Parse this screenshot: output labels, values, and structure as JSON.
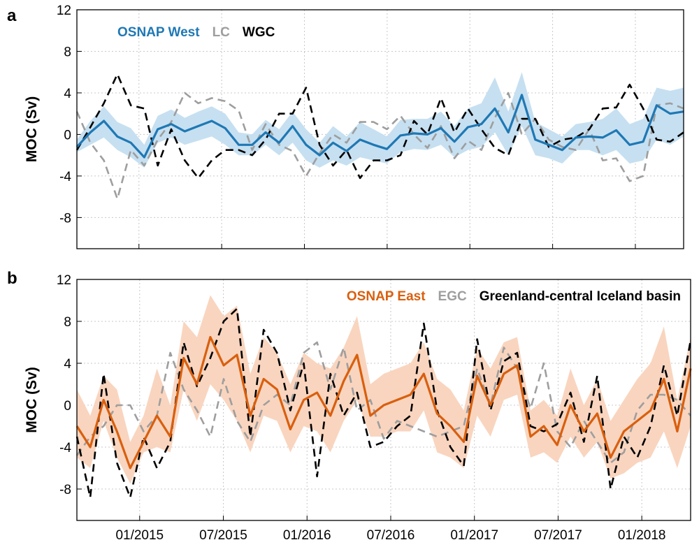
{
  "chart_data": [
    {
      "panel_label": "a",
      "type": "line",
      "ylabel": "MOC (Sv)",
      "ylim": [
        -11,
        12
      ],
      "xlim": [
        0,
        44
      ],
      "yticks": [
        "12",
        "8",
        "4",
        "0",
        "-4",
        "-8"
      ],
      "ytick_values": [
        12,
        8,
        4,
        0,
        -4,
        -8
      ],
      "grid": true,
      "legend": "top-left",
      "band_color": "#c6e0f1",
      "series": [
        {
          "name": "OSNAP West",
          "color": "#1f78b4",
          "style": "solid",
          "values": [
            -1.2,
            0.2,
            1.3,
            -0.2,
            -0.8,
            -2.2,
            0.5,
            1.0,
            0.3,
            0.8,
            1.3,
            0.6,
            -1.0,
            -1.0,
            0.2,
            -0.8,
            0.8,
            -1.0,
            -2.0,
            -0.8,
            -1.6,
            -0.5,
            -1.0,
            -1.4,
            -0.1,
            0.1,
            0.0,
            0.6,
            -0.7,
            0.7,
            1.0,
            2.5,
            0.2,
            3.8,
            -0.5,
            -1.0,
            -1.5,
            -0.3,
            -0.2,
            -0.3,
            0.4,
            -1.0,
            -0.7,
            2.8,
            2.0,
            2.2
          ]
        },
        {
          "name": "LC",
          "color": "#9e9e9e",
          "style": "dashed",
          "values": [
            2.2,
            -0.8,
            -2.5,
            -6.2,
            -1.5,
            -3.0,
            -0.5,
            1.2,
            4.0,
            3.0,
            3.5,
            3.2,
            2.3,
            -1.5,
            1.0,
            -1.0,
            -1.6,
            -4.0,
            -1.8,
            0.0,
            -0.8,
            1.2,
            1.2,
            0.5,
            1.8,
            0.0,
            -1.3,
            0.8,
            -2.3,
            -0.6,
            -1.5,
            1.6,
            4.0,
            0.0,
            1.5,
            -0.5,
            -1.2,
            -1.5,
            0.5,
            -2.5,
            -2.3,
            -4.5,
            -4.0,
            2.8,
            3.0,
            2.5
          ]
        },
        {
          "name": "WGC",
          "color": "#000000",
          "style": "dashed",
          "values": [
            -1.5,
            0.7,
            3.0,
            5.8,
            2.8,
            2.5,
            -3.0,
            0.5,
            -2.5,
            -4.2,
            -2.5,
            -1.5,
            -1.5,
            -2.0,
            -0.5,
            2.0,
            2.0,
            4.5,
            -1.0,
            -3.0,
            -1.5,
            -4.2,
            -2.5,
            -2.5,
            -2.0,
            1.3,
            0.0,
            3.5,
            0.2,
            2.5,
            0.5,
            -1.3,
            -2.0,
            1.5,
            1.5,
            -1.2,
            -0.5,
            -0.3,
            0.5,
            2.5,
            2.6,
            4.8,
            2.5,
            -0.5,
            -0.7,
            0.2
          ]
        }
      ],
      "band": {
        "lower": [
          -1.7,
          -1.0,
          -0.3,
          -1.5,
          -2.2,
          -3.2,
          -0.8,
          -0.3,
          -1.0,
          -0.6,
          -0.2,
          -1.0,
          -2.0,
          -2.0,
          -1.0,
          -2.0,
          -0.8,
          -2.5,
          -3.2,
          -2.5,
          -3.0,
          -2.2,
          -2.5,
          -2.8,
          -1.7,
          -1.4,
          -1.5,
          -1.0,
          -2.2,
          -1.5,
          -1.2,
          0.2,
          -2.0,
          0.8,
          -2.0,
          -2.3,
          -2.8,
          -1.5,
          -1.5,
          -2.0,
          -1.5,
          -2.8,
          -2.5,
          -0.5,
          -1.0,
          -0.2
        ],
        "upper": [
          -0.5,
          1.3,
          2.7,
          1.2,
          0.6,
          -1.0,
          1.8,
          2.4,
          1.6,
          2.2,
          2.7,
          2.0,
          0.2,
          0.0,
          1.4,
          0.5,
          2.2,
          0.5,
          -0.8,
          0.8,
          -0.2,
          1.2,
          0.5,
          -0.2,
          1.4,
          1.5,
          1.5,
          2.2,
          0.8,
          2.5,
          3.0,
          5.5,
          2.2,
          6.0,
          1.2,
          0.5,
          -0.2,
          1.0,
          1.2,
          1.5,
          2.5,
          1.0,
          1.5,
          4.5,
          4.2,
          4.5
        ]
      }
    },
    {
      "panel_label": "b",
      "type": "line",
      "ylabel": "MOC (Sv)",
      "ylim": [
        -11,
        12
      ],
      "xlim": [
        0,
        44
      ],
      "yticks": [
        "12",
        "8",
        "4",
        "0",
        "-4",
        "-8"
      ],
      "ytick_values": [
        12,
        8,
        4,
        0,
        -4,
        -8
      ],
      "xticks": [
        "01/2015",
        "07/2015",
        "01/2016",
        "07/2016",
        "01/2017",
        "07/2017",
        "01/2018"
      ],
      "xtick_positions": [
        4.5,
        10.5,
        16.5,
        22.5,
        28.5,
        34.5,
        40.5
      ],
      "grid": true,
      "legend": "top-right",
      "band_color": "#f9d5bf",
      "series": [
        {
          "name": "OSNAP East",
          "color": "#d95f0e",
          "style": "solid",
          "values": [
            -2.0,
            -4.0,
            0.5,
            -2.5,
            -6.0,
            -3.5,
            -1.0,
            -3.0,
            4.5,
            2.0,
            6.5,
            3.8,
            4.8,
            -1.0,
            2.5,
            1.5,
            -2.3,
            0.5,
            1.2,
            -1.0,
            2.3,
            4.8,
            -1.0,
            0.0,
            0.5,
            1.0,
            3.0,
            -0.8,
            -2.0,
            -3.5,
            2.8,
            0.0,
            3.0,
            3.8,
            -3.0,
            -2.0,
            -3.8,
            0.0,
            -2.5,
            -0.8,
            -5.0,
            -2.5,
            -1.5,
            -0.5,
            2.5,
            -2.5,
            3.5
          ]
        },
        {
          "name": "EGC",
          "color": "#9e9e9e",
          "style": "dashed",
          "values": [
            -4.8,
            -3.0,
            -2.0,
            0.0,
            0.0,
            -2.5,
            -1.0,
            5.0,
            1.5,
            -0.5,
            -3.0,
            2.5,
            -1.5,
            -3.5,
            0.0,
            1.0,
            0.0,
            5.0,
            6.0,
            1.5,
            5.5,
            -0.5,
            0.5,
            -3.2,
            -1.5,
            -2.0,
            -2.5,
            -3.0,
            -2.5,
            -2.0,
            3.5,
            0.0,
            5.5,
            3.5,
            -0.3,
            4.0,
            -2.5,
            -4.0,
            -1.5,
            -3.5,
            -5.5,
            -4.5,
            -0.5,
            1.0,
            1.0,
            0.5,
            -1.0
          ]
        },
        {
          "name": "Greenland-central Iceland basin",
          "color": "#000000",
          "style": "dashed",
          "values": [
            -3.0,
            -8.8,
            3.0,
            -5.5,
            -8.8,
            -3.0,
            -6.0,
            -3.5,
            6.0,
            1.8,
            4.5,
            8.0,
            9.2,
            -3.0,
            7.2,
            5.0,
            -0.5,
            4.0,
            -6.8,
            3.0,
            -1.0,
            1.2,
            -4.0,
            -3.5,
            -2.0,
            -1.0,
            7.8,
            -0.5,
            -4.0,
            -5.8,
            6.3,
            -0.5,
            4.2,
            5.0,
            -2.0,
            -2.5,
            -1.8,
            1.2,
            -3.5,
            2.8,
            -8.0,
            -3.0,
            -5.0,
            -2.0,
            3.8,
            -1.0,
            6.2
          ]
        }
      ],
      "band": {
        "lower": [
          -5.0,
          -6.0,
          -1.5,
          -5.0,
          -7.5,
          -4.5,
          -4.0,
          -4.5,
          1.5,
          -1.5,
          2.0,
          0.5,
          -1.5,
          -4.5,
          -1.0,
          -1.5,
          -4.5,
          -2.0,
          -2.5,
          -4.5,
          -1.5,
          0.5,
          -3.0,
          -3.0,
          -2.5,
          -2.5,
          -0.5,
          -4.5,
          -5.0,
          -6.0,
          -1.0,
          -3.0,
          0.5,
          1.0,
          -5.0,
          -4.5,
          -5.5,
          -3.0,
          -5.0,
          -3.5,
          -7.0,
          -6.5,
          -5.5,
          -5.0,
          -2.5,
          -6.0,
          -2.0
        ],
        "upper": [
          1.5,
          -1.0,
          2.8,
          1.5,
          -3.5,
          -1.0,
          3.5,
          0.0,
          8.0,
          6.5,
          10.5,
          8.5,
          9.5,
          3.0,
          6.5,
          5.0,
          2.0,
          5.0,
          4.0,
          3.5,
          5.5,
          8.5,
          2.0,
          3.0,
          3.5,
          4.0,
          6.0,
          2.5,
          1.5,
          -0.5,
          5.5,
          3.5,
          6.0,
          6.5,
          -0.5,
          0.5,
          -1.0,
          3.5,
          0.0,
          2.5,
          -1.5,
          0.5,
          2.5,
          4.0,
          7.5,
          0.5,
          6.5
        ]
      }
    }
  ]
}
